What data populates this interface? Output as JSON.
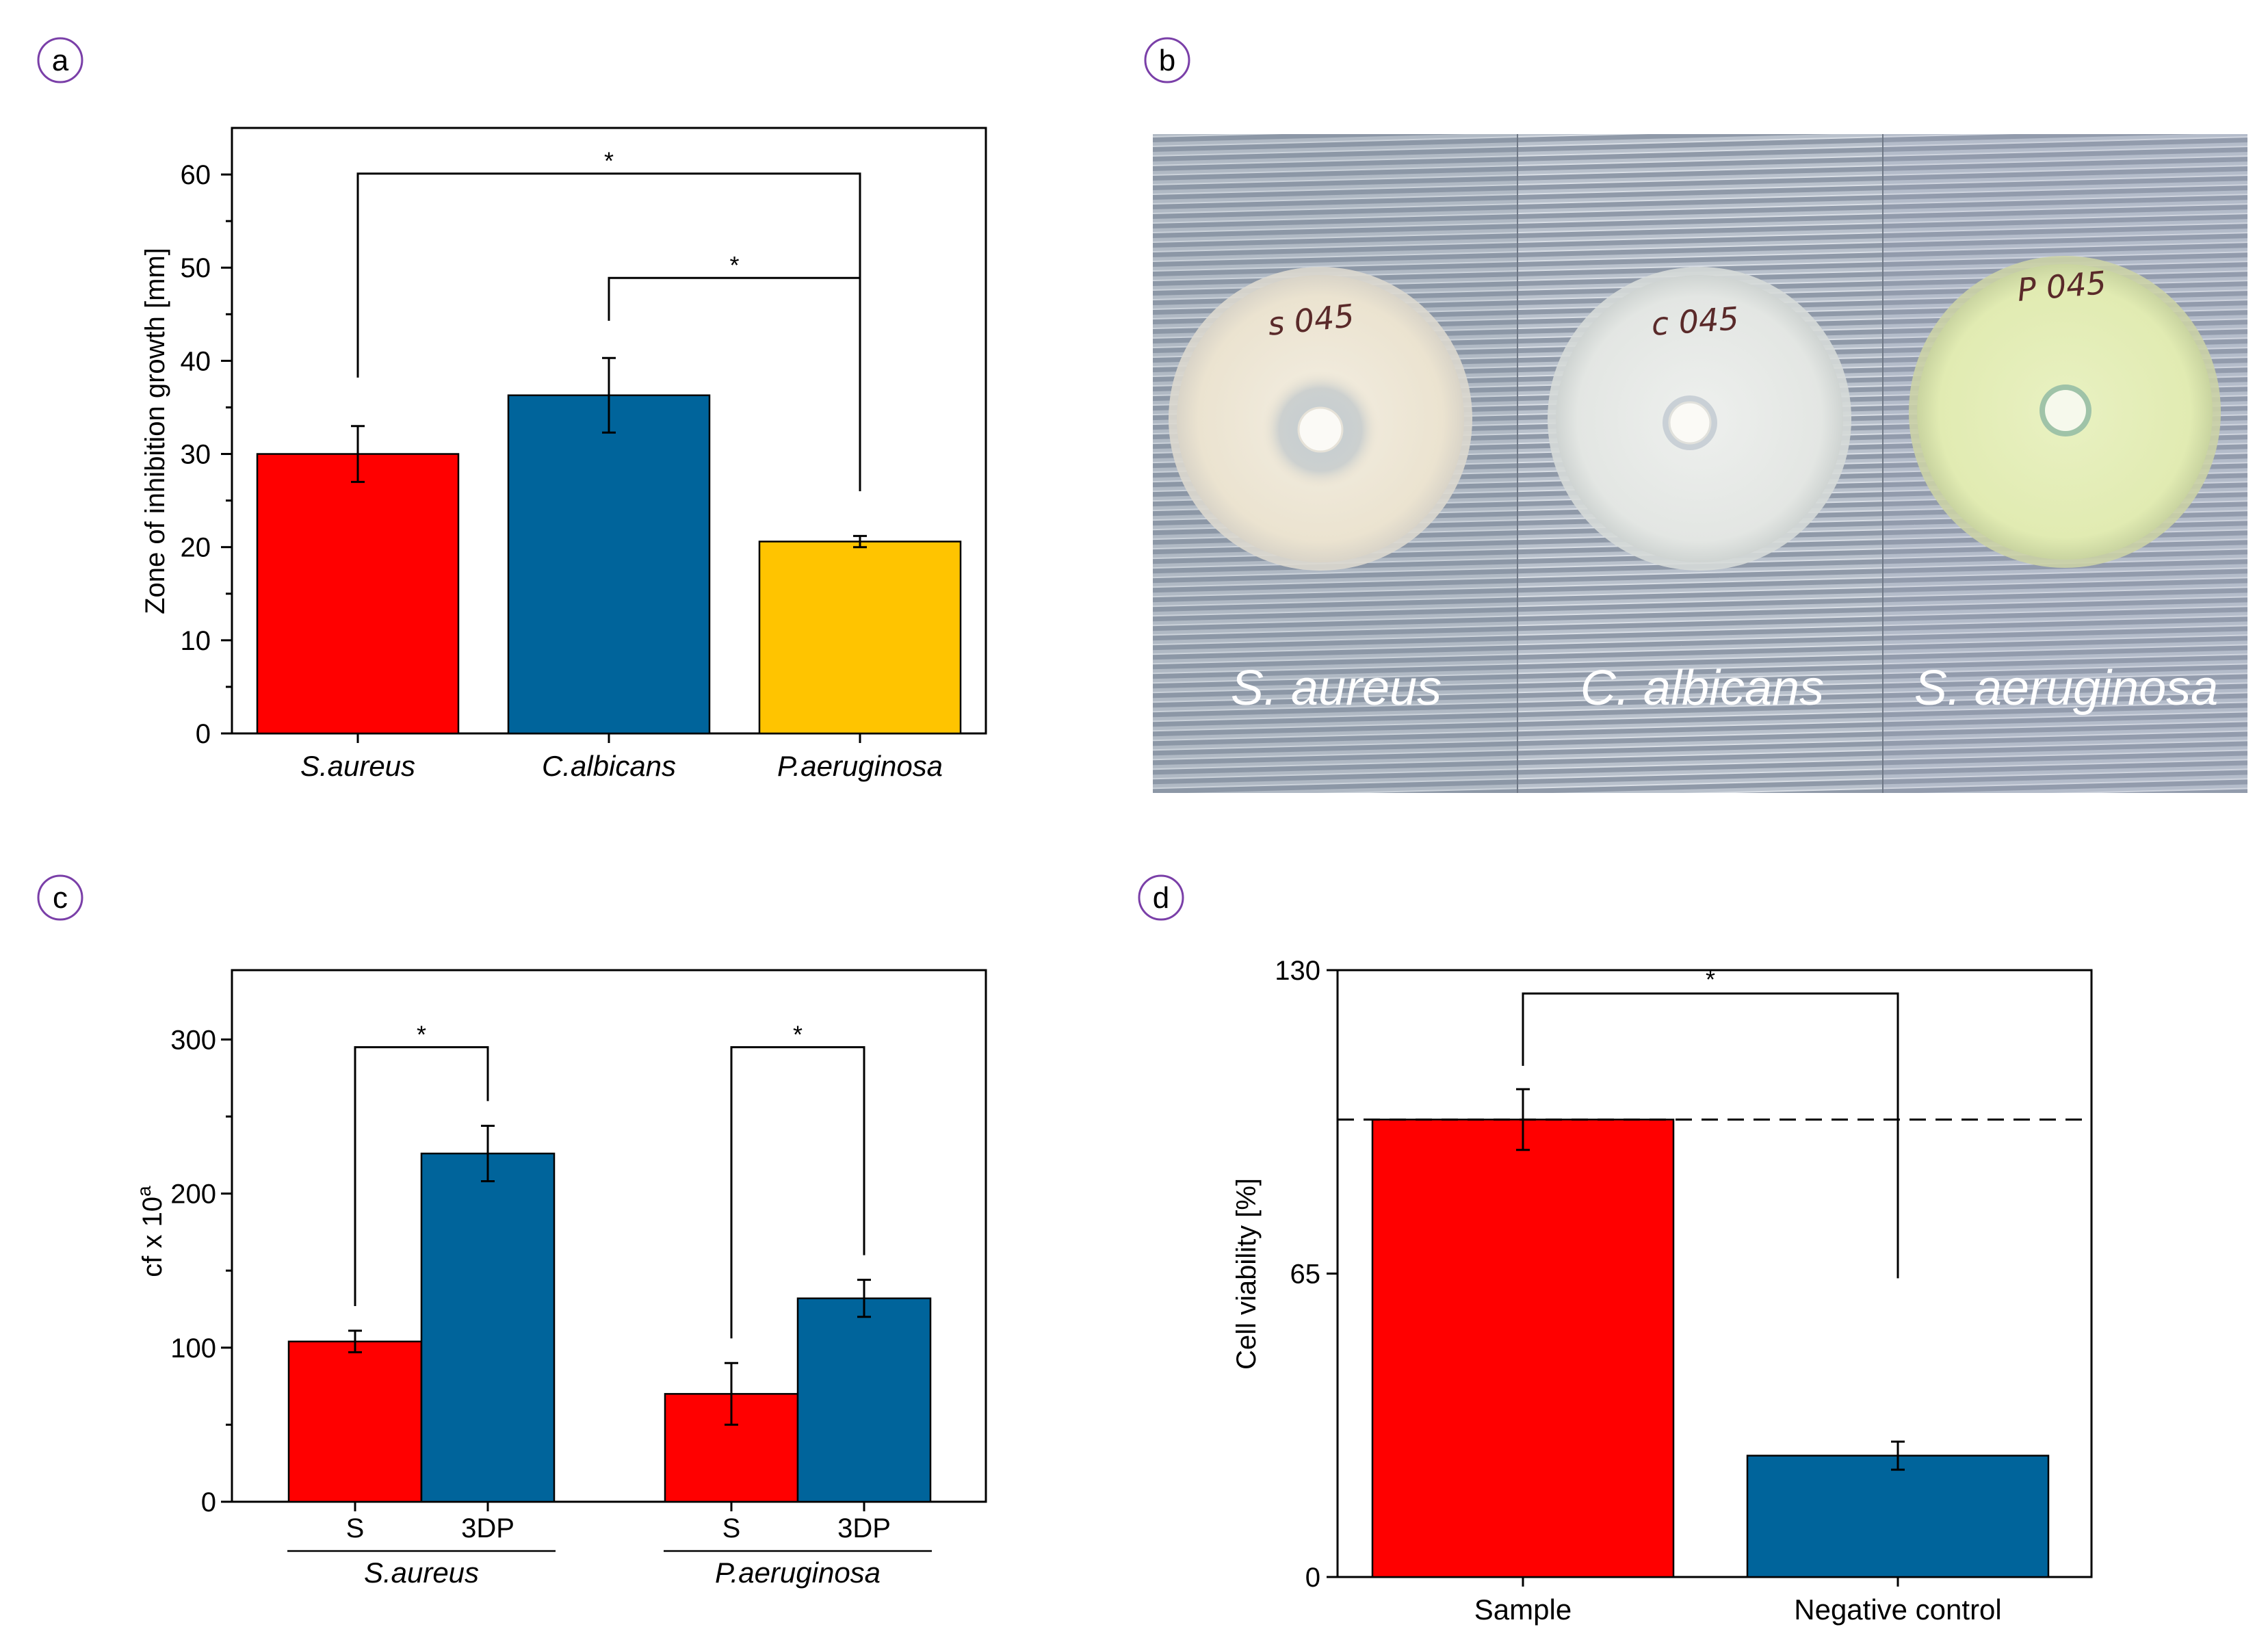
{
  "colors": {
    "red": "#ff0000",
    "blue": "#00649b",
    "yellow": "#ffc400"
  },
  "panels": {
    "a": "a",
    "b": "b",
    "c": "c",
    "d": "d"
  },
  "photo": {
    "labels": [
      "S. aureus",
      "C. albicans",
      "S. aeruginosa"
    ],
    "plate_labels": [
      "s 045",
      "c 045",
      "P 045"
    ]
  },
  "chart_data": [
    {
      "panel": "a",
      "type": "bar",
      "title": "",
      "ylabel": "Zone of inhibition growth [mm]",
      "ylim": [
        0,
        65
      ],
      "yticks": [
        0,
        10,
        20,
        30,
        40,
        50,
        60
      ],
      "categories": [
        "S.aureus",
        "C.albicans",
        "P.aeruginosa"
      ],
      "values": [
        30,
        36.3,
        20.6
      ],
      "errors": [
        3,
        4,
        0.6
      ],
      "bar_colors": [
        "#ff0000",
        "#00649b",
        "#ffc400"
      ],
      "significance": [
        {
          "from": 0,
          "to": 2,
          "label": "*"
        },
        {
          "from": 1,
          "to": 2,
          "label": "*"
        }
      ]
    },
    {
      "panel": "c",
      "type": "bar",
      "title": "",
      "ylabel": "cf x 10",
      "ylabel_sup": "a",
      "ylim": [
        0,
        345
      ],
      "yticks": [
        0,
        100,
        200,
        300
      ],
      "groups": [
        "S.aureus",
        "P.aeruginosa"
      ],
      "subcategories": [
        "S",
        "3DP"
      ],
      "series": [
        {
          "name": "S",
          "color": "#ff0000",
          "values": [
            104,
            70
          ],
          "errors": [
            7,
            20
          ]
        },
        {
          "name": "3DP",
          "color": "#00649b",
          "values": [
            226,
            132
          ],
          "errors": [
            18,
            12
          ]
        }
      ],
      "significance": [
        {
          "group": 0,
          "label": "*"
        },
        {
          "group": 1,
          "label": "*"
        }
      ]
    },
    {
      "panel": "d",
      "type": "bar",
      "title": "",
      "ylabel": "Cell viability [%]",
      "ylim": [
        0,
        130
      ],
      "yticks": [
        0,
        65,
        130
      ],
      "categories": [
        "Sample",
        "Negative control"
      ],
      "values": [
        98,
        26
      ],
      "errors": [
        6.5,
        3
      ],
      "bar_colors": [
        "#ff0000",
        "#00649b"
      ],
      "reference_line": 98,
      "significance": [
        {
          "from": 0,
          "to": 1,
          "label": "*"
        }
      ]
    }
  ]
}
